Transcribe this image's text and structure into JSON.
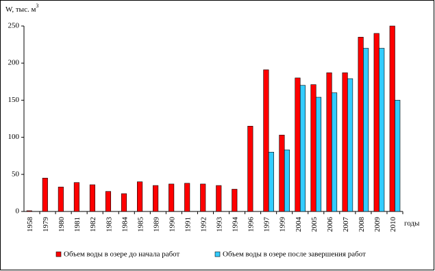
{
  "chart_data": {
    "type": "bar",
    "y_label": "W, тыс. м",
    "y_label_sup": "3",
    "x_label": "годы",
    "categories": [
      "1958",
      "1979",
      "1980",
      "1981",
      "1982",
      "1983",
      "1984",
      "1985",
      "1989",
      "1990",
      "1991",
      "1992",
      "1993",
      "1994",
      "1996",
      "1997",
      "1999",
      "2004",
      "2005",
      "2006",
      "2007",
      "2008",
      "2009",
      "2010"
    ],
    "series": [
      {
        "name": "Объем воды в озере до начала работ",
        "color": "#ff0000",
        "values": [
          1,
          45,
          33,
          39,
          36,
          27,
          24,
          40,
          35,
          37,
          38,
          37,
          35,
          30,
          115,
          191,
          103,
          180,
          171,
          187,
          187,
          235,
          240,
          250
        ]
      },
      {
        "name": "Объем воды в озере после завершения работ",
        "color": "#33ccff",
        "values": [
          null,
          null,
          null,
          null,
          null,
          null,
          null,
          null,
          null,
          null,
          null,
          null,
          null,
          null,
          null,
          80,
          83,
          170,
          154,
          160,
          179,
          220,
          220,
          150
        ]
      }
    ],
    "ylim": [
      0,
      250
    ],
    "yticks": [
      0,
      50,
      100,
      150,
      200,
      250
    ],
    "grid": false,
    "legend": "bottom"
  }
}
